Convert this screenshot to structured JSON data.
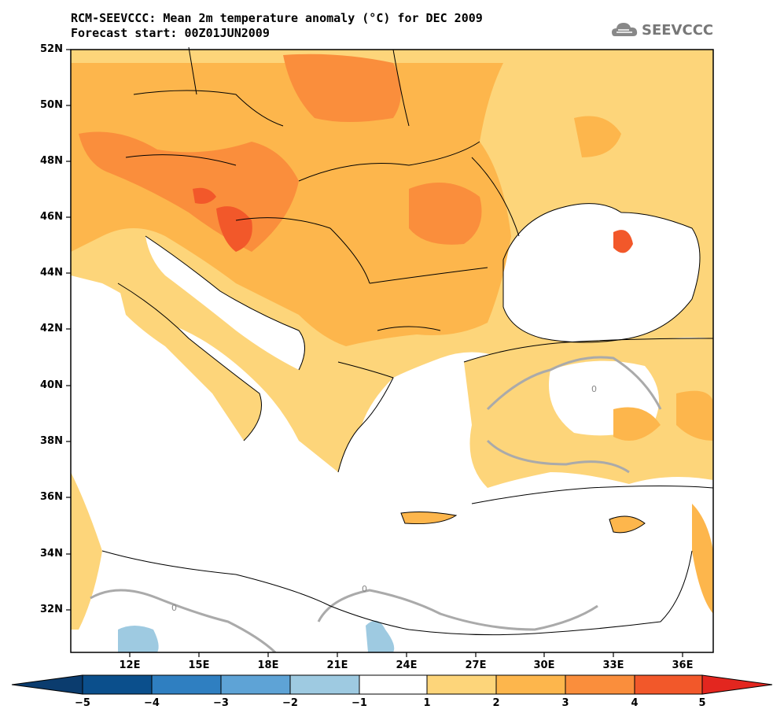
{
  "title": {
    "line1": "RCM-SEEVCCC: Mean 2m temperature anomaly (°C) for DEC 2009",
    "line2": "Forecast start: 00Z01JUN2009"
  },
  "logo": {
    "text": "SEEVCCC",
    "icon": "cloud-icon"
  },
  "map": {
    "lat_labels": [
      "52N",
      "50N",
      "48N",
      "46N",
      "44N",
      "42N",
      "40N",
      "38N",
      "36N",
      "34N",
      "32N"
    ],
    "lon_labels": [
      "12E",
      "15E",
      "18E",
      "21E",
      "24E",
      "27E",
      "30E",
      "33E",
      "36E"
    ],
    "contour_label": "0"
  },
  "colorbar": {
    "labels": [
      "−5",
      "−4",
      "−3",
      "−2",
      "−1",
      "1",
      "2",
      "3",
      "4",
      "5"
    ],
    "colors": [
      "#0b4f8c",
      "#2f7fc1",
      "#5ea3d6",
      "#9ecae1",
      "#ffffff",
      "#fdd57a",
      "#fdb64c",
      "#fa8e3c",
      "#f2582a"
    ],
    "extend_low_color": "#0b3c6e",
    "extend_high_color": "#e3261f"
  }
}
